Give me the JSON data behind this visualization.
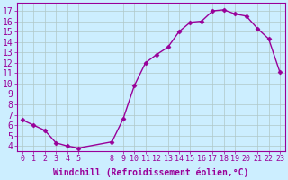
{
  "x": [
    0,
    1,
    2,
    3,
    4,
    5,
    8,
    9,
    10,
    11,
    12,
    13,
    14,
    15,
    16,
    17,
    18,
    19,
    20,
    21,
    22,
    23
  ],
  "y": [
    6.5,
    6.0,
    5.5,
    4.3,
    4.0,
    3.8,
    4.4,
    6.6,
    9.8,
    12.0,
    12.8,
    13.5,
    15.0,
    15.9,
    16.0,
    17.0,
    17.1,
    16.7,
    16.5,
    15.3,
    14.3,
    11.1
  ],
  "line_color": "#990099",
  "bg_color": "#cceeff",
  "grid_color": "#b0c8c8",
  "xlabel": "Windchill (Refroidissement éolien,°C)",
  "ylabel_ticks": [
    4,
    5,
    6,
    7,
    8,
    9,
    10,
    11,
    12,
    13,
    14,
    15,
    16,
    17
  ],
  "xticks": [
    0,
    1,
    2,
    3,
    4,
    5,
    8,
    9,
    10,
    11,
    12,
    13,
    14,
    15,
    16,
    17,
    18,
    19,
    20,
    21,
    22,
    23
  ],
  "ylim": [
    3.5,
    17.8
  ],
  "xlim": [
    -0.5,
    23.5
  ],
  "font_size": 7,
  "marker": "D",
  "marker_size": 2.5,
  "linewidth": 1.0
}
